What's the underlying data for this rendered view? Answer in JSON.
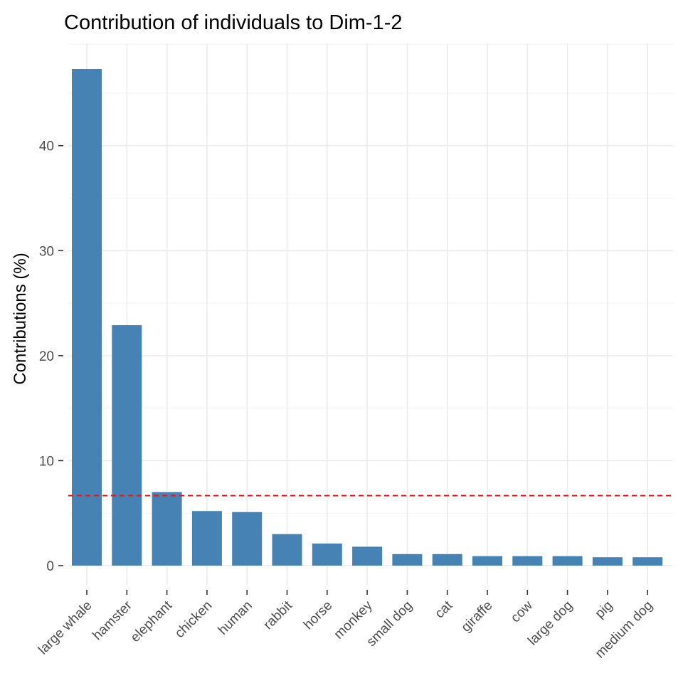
{
  "chart_data": {
    "type": "bar",
    "title": "Contribution of individuals to Dim-1-2",
    "xlabel": "",
    "ylabel": "Contributions (%)",
    "categories": [
      "large whale",
      "hamster",
      "elephant",
      "chicken",
      "human",
      "rabbit",
      "horse",
      "monkey",
      "small dog",
      "cat",
      "giraffe",
      "cow",
      "large dog",
      "pig",
      "medium dog"
    ],
    "values": [
      47.3,
      22.9,
      7.0,
      5.2,
      5.1,
      3.0,
      2.1,
      1.8,
      1.1,
      1.1,
      0.9,
      0.9,
      0.9,
      0.8,
      0.8
    ],
    "ylim": [
      0,
      47.3
    ],
    "yticks": [
      0,
      10,
      20,
      30,
      40
    ],
    "reference_line": 6.67,
    "grid": true,
    "colors": {
      "bar": "#4682b4",
      "reference_line": "#e41a1c"
    }
  }
}
